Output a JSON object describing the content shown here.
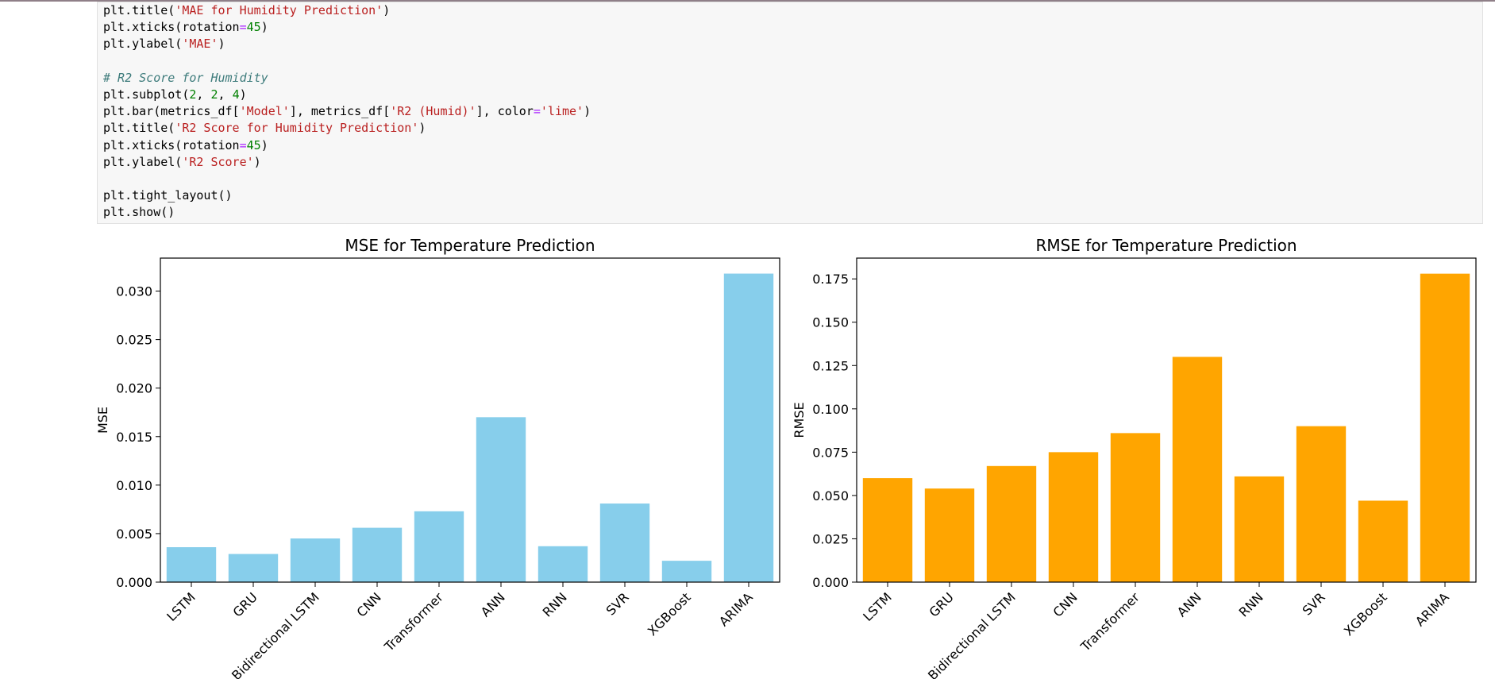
{
  "code": {
    "lines": [
      [
        {
          "t": "plt",
          "c": "plain"
        },
        {
          "t": ".title(",
          "c": "plain"
        },
        {
          "t": "'MAE for Humidity Prediction'",
          "c": "str"
        },
        {
          "t": ")",
          "c": "plain"
        }
      ],
      [
        {
          "t": "plt",
          "c": "plain"
        },
        {
          "t": ".xticks(rotation",
          "c": "plain"
        },
        {
          "t": "=",
          "c": "op"
        },
        {
          "t": "45",
          "c": "num"
        },
        {
          "t": ")",
          "c": "plain"
        }
      ],
      [
        {
          "t": "plt",
          "c": "plain"
        },
        {
          "t": ".ylabel(",
          "c": "plain"
        },
        {
          "t": "'MAE'",
          "c": "str"
        },
        {
          "t": ")",
          "c": "plain"
        }
      ],
      [],
      [
        {
          "t": "# R2 Score for Humidity",
          "c": "com"
        }
      ],
      [
        {
          "t": "plt",
          "c": "plain"
        },
        {
          "t": ".subplot(",
          "c": "plain"
        },
        {
          "t": "2",
          "c": "num"
        },
        {
          "t": ", ",
          "c": "plain"
        },
        {
          "t": "2",
          "c": "num"
        },
        {
          "t": ", ",
          "c": "plain"
        },
        {
          "t": "4",
          "c": "num"
        },
        {
          "t": ")",
          "c": "plain"
        }
      ],
      [
        {
          "t": "plt",
          "c": "plain"
        },
        {
          "t": ".bar(metrics_df[",
          "c": "plain"
        },
        {
          "t": "'Model'",
          "c": "str"
        },
        {
          "t": "], metrics_df[",
          "c": "plain"
        },
        {
          "t": "'R2 (Humid)'",
          "c": "str"
        },
        {
          "t": "], color",
          "c": "plain"
        },
        {
          "t": "=",
          "c": "op"
        },
        {
          "t": "'lime'",
          "c": "str"
        },
        {
          "t": ")",
          "c": "plain"
        }
      ],
      [
        {
          "t": "plt",
          "c": "plain"
        },
        {
          "t": ".title(",
          "c": "plain"
        },
        {
          "t": "'R2 Score for Humidity Prediction'",
          "c": "str"
        },
        {
          "t": ")",
          "c": "plain"
        }
      ],
      [
        {
          "t": "plt",
          "c": "plain"
        },
        {
          "t": ".xticks(rotation",
          "c": "plain"
        },
        {
          "t": "=",
          "c": "op"
        },
        {
          "t": "45",
          "c": "num"
        },
        {
          "t": ")",
          "c": "plain"
        }
      ],
      [
        {
          "t": "plt",
          "c": "plain"
        },
        {
          "t": ".ylabel(",
          "c": "plain"
        },
        {
          "t": "'R2 Score'",
          "c": "str"
        },
        {
          "t": ")",
          "c": "plain"
        }
      ],
      [],
      [
        {
          "t": "plt",
          "c": "plain"
        },
        {
          "t": ".tight_layout()",
          "c": "plain"
        }
      ],
      [
        {
          "t": "plt",
          "c": "plain"
        },
        {
          "t": ".show()",
          "c": "plain"
        }
      ]
    ]
  },
  "chart_data": [
    {
      "type": "bar",
      "title": "MSE for Temperature Prediction",
      "xlabel": "",
      "ylabel": "MSE",
      "categories": [
        "LSTM",
        "GRU",
        "Bidirectional LSTM",
        "CNN",
        "Transformer",
        "ANN",
        "RNN",
        "SVR",
        "XGBoost",
        "ARIMA"
      ],
      "values": [
        0.0036,
        0.0029,
        0.0045,
        0.0056,
        0.0073,
        0.017,
        0.0037,
        0.0081,
        0.0022,
        0.0318
      ],
      "ylim": [
        0,
        0.0334
      ],
      "yticks": [
        "0.000",
        "0.005",
        "0.010",
        "0.015",
        "0.020",
        "0.025",
        "0.030"
      ],
      "ytick_values": [
        0,
        0.005,
        0.01,
        0.015,
        0.02,
        0.025,
        0.03
      ],
      "color": "#87ceeb",
      "grid": false
    },
    {
      "type": "bar",
      "title": "RMSE for Temperature Prediction",
      "xlabel": "",
      "ylabel": "RMSE",
      "categories": [
        "LSTM",
        "GRU",
        "Bidirectional LSTM",
        "CNN",
        "Transformer",
        "ANN",
        "RNN",
        "SVR",
        "XGBoost",
        "ARIMA"
      ],
      "values": [
        0.06,
        0.054,
        0.067,
        0.075,
        0.086,
        0.13,
        0.061,
        0.09,
        0.047,
        0.178
      ],
      "ylim": [
        0,
        0.187
      ],
      "yticks": [
        "0.000",
        "0.025",
        "0.050",
        "0.075",
        "0.100",
        "0.125",
        "0.150",
        "0.175"
      ],
      "ytick_values": [
        0,
        0.025,
        0.05,
        0.075,
        0.1,
        0.125,
        0.15,
        0.175
      ],
      "color": "#ffa500",
      "grid": false
    }
  ]
}
